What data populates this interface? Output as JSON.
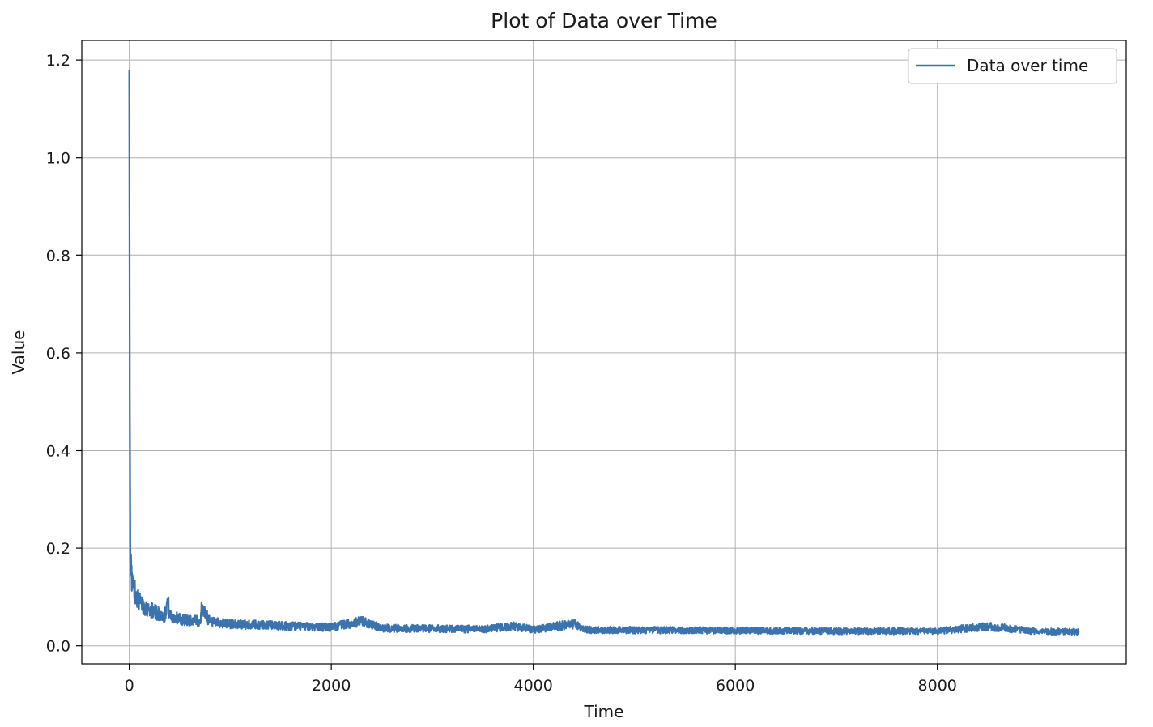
{
  "chart_data": {
    "type": "line",
    "title": "Plot of Data over Time",
    "xlabel": "Time",
    "ylabel": "Value",
    "xlim": [
      -470,
      9870
    ],
    "ylim": [
      -0.037,
      1.24
    ],
    "xticks": [
      0,
      2000,
      4000,
      6000,
      8000
    ],
    "yticks": [
      0.0,
      0.2,
      0.4,
      0.6,
      0.8,
      1.0,
      1.2
    ],
    "xtick_labels": [
      "0",
      "2000",
      "4000",
      "6000",
      "8000"
    ],
    "ytick_labels": [
      "0.0",
      "0.2",
      "0.4",
      "0.6",
      "0.8",
      "1.0",
      "1.2"
    ],
    "grid": true,
    "legend": {
      "placement": "upper right",
      "entries": [
        "Data over time"
      ]
    },
    "series": [
      {
        "name": "Data over time",
        "color": "#3a73ad",
        "x": [
          0,
          5,
          10,
          20,
          30,
          40,
          60,
          80,
          100,
          150,
          200,
          250,
          300,
          350,
          380,
          400,
          450,
          500,
          600,
          700,
          720,
          800,
          900,
          1000,
          1200,
          1400,
          1600,
          1800,
          2000,
          2300,
          2500,
          3000,
          3500,
          3800,
          4000,
          4400,
          4500,
          5000,
          5500,
          6000,
          6500,
          7000,
          7500,
          8000,
          8500,
          9000,
          9400
        ],
        "y": [
          1.18,
          0.5,
          0.2,
          0.15,
          0.13,
          0.12,
          0.11,
          0.1,
          0.09,
          0.08,
          0.075,
          0.07,
          0.065,
          0.06,
          0.095,
          0.06,
          0.058,
          0.055,
          0.052,
          0.05,
          0.08,
          0.048,
          0.046,
          0.045,
          0.043,
          0.042,
          0.04,
          0.039,
          0.038,
          0.05,
          0.036,
          0.035,
          0.034,
          0.04,
          0.033,
          0.045,
          0.033,
          0.032,
          0.032,
          0.031,
          0.031,
          0.03,
          0.03,
          0.03,
          0.04,
          0.029,
          0.029
        ]
      }
    ]
  }
}
